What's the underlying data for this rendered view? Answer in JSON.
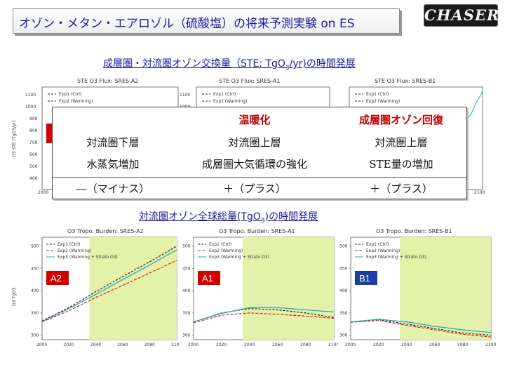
{
  "slide": {
    "title": "オゾン・メタン・エアロゾル（硫酸塩）の将来予測実験 on ES",
    "logo_text": "CHASER",
    "heading_ste": {
      "text": "成層圏・対流圏オゾン交換量（STE: TgO",
      "sub": "3",
      "tail": "/yr)の時間発展"
    },
    "heading_burden": {
      "text": "対流圏オゾン全球総量(TgO",
      "sub": "3",
      "tail": ")の時間発展"
    }
  },
  "overlay_table": {
    "header": [
      "",
      "温暖化",
      "成層圏オゾン回復"
    ],
    "row1": [
      "対流圏下層",
      "対流圏上層",
      "対流圏上層"
    ],
    "row2": [
      "水蒸気増加",
      "成層圏大気循環の強化",
      "STE量の増加"
    ],
    "signs": [
      "―（マイナス）",
      "＋（プラス）",
      "＋（プラス）"
    ]
  },
  "ste_panels": [
    {
      "title": "STE O3 Flux: SRES-A2",
      "legend": [
        "Exp1 (Ctrl)",
        "Exp2 (Warming)"
      ],
      "ylabel": "O3 STE [TgO3/yr]",
      "yticks": [
        "1100",
        "1000",
        "900",
        "800",
        "700",
        "600",
        "500",
        "400"
      ],
      "xtick": "2000"
    },
    {
      "title": "STE O3 Flux: SRES-A1",
      "legend": [
        "Exp1 (Ctrl)",
        "Exp2 (Warming)"
      ],
      "yticks": [
        "1100",
        "1000"
      ]
    },
    {
      "title": "STE O3 Flux: SRES-B1",
      "legend": [
        "Exp1 (Ctrl)",
        "Exp2 (Warming)"
      ],
      "xtick": "2100"
    }
  ],
  "burden_panels": [
    {
      "title": "O3 Tropo. Burden: SRES-A2",
      "label": "A2",
      "ylabel": "O3 TgO3",
      "legend": [
        "Exp1 (Ctrl)",
        "Exp2 (Warming)",
        "Exp3 (Warming + Strato O3)"
      ],
      "yticks": [
        "500",
        "450",
        "400",
        "350",
        "300"
      ],
      "xticks": [
        "2000",
        "2020",
        "2040",
        "2060",
        "2080",
        "2100"
      ],
      "series": {
        "years": [
          2000,
          2020,
          2040,
          2060,
          2080,
          2100
        ],
        "exp1": [
          332,
          362,
          398,
          432,
          465,
          500
        ],
        "exp2": [
          330,
          355,
          385,
          412,
          440,
          468
        ],
        "exp3": [
          331,
          360,
          392,
          425,
          458,
          492
        ]
      },
      "ylim": [
        290,
        520
      ],
      "highlight_from": 2035
    },
    {
      "title": "O3 Tropo. Burden: SRES-A1",
      "label": "A1",
      "legend": [
        "Exp1 (Ctrl)",
        "Exp2 (Warming)",
        "Exp3 (Warming + Strato O3)"
      ],
      "yticks": [
        "500",
        "450",
        "400",
        "350",
        "300"
      ],
      "xticks": [
        "2000",
        "2020",
        "2040",
        "2060",
        "2080",
        "2100"
      ],
      "series": {
        "years": [
          2000,
          2020,
          2040,
          2060,
          2080,
          2100
        ],
        "exp1": [
          330,
          350,
          360,
          357,
          350,
          340
        ],
        "exp2": [
          328,
          345,
          350,
          347,
          343,
          338
        ],
        "exp3": [
          330,
          349,
          362,
          362,
          357,
          352
        ]
      },
      "ylim": [
        290,
        520
      ],
      "highlight_from": 2035
    },
    {
      "title": "O3 Tropo. Burden: SRES-B1",
      "label": "B1",
      "legend": [
        "Exp1 (Ctrl)",
        "Exp2 (Warming)",
        "Exp3 (Warming + Strato O3)"
      ],
      "yticks": [
        "500",
        "450",
        "400",
        "350",
        "300"
      ],
      "xticks": [
        "2000",
        "2020",
        "2040",
        "2060",
        "2080",
        "2100"
      ],
      "series": {
        "years": [
          2000,
          2020,
          2040,
          2060,
          2080,
          2100
        ],
        "exp1": [
          330,
          335,
          325,
          315,
          305,
          300
        ],
        "exp2": [
          329,
          333,
          322,
          312,
          302,
          296
        ],
        "exp3": [
          330,
          336,
          330,
          320,
          312,
          306
        ]
      },
      "ylim": [
        290,
        520
      ],
      "highlight_from": 2035
    }
  ],
  "colors": {
    "title_text": "#1a1aa0",
    "highlight": "#e4f1a8",
    "exp1": "#222222",
    "exp2": "#d62020",
    "exp3": "#1aa7c9",
    "label_bg": "#d40000",
    "label_bg_b1": "#1a3fa0",
    "table_header": "#c00000"
  }
}
